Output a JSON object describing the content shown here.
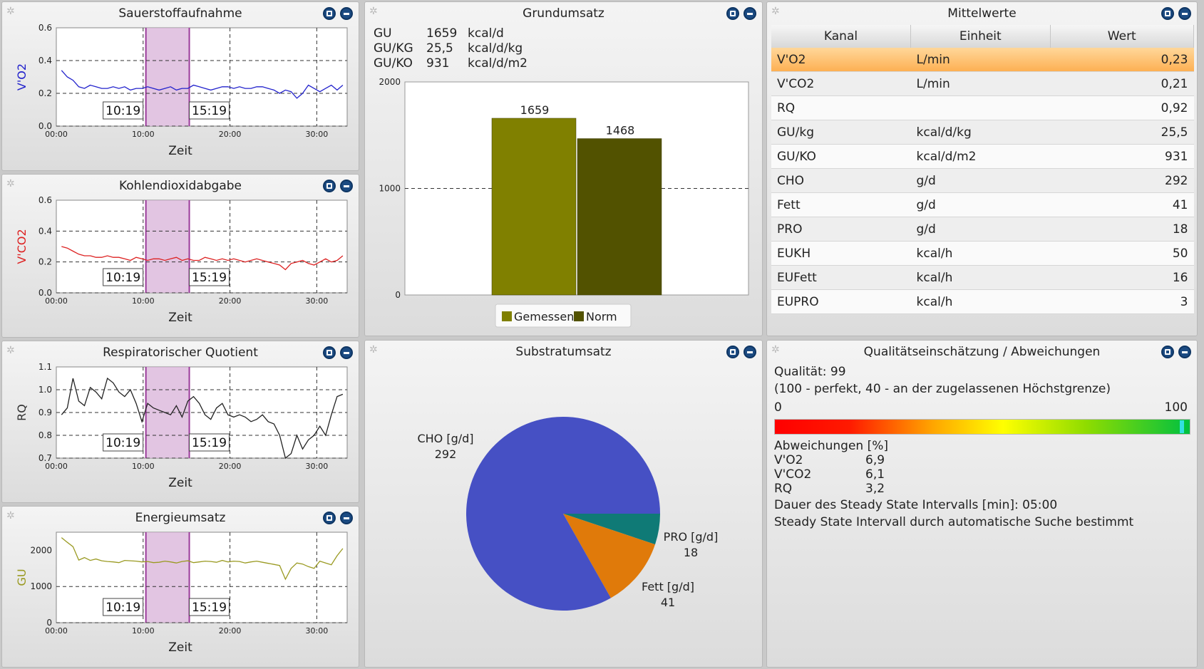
{
  "o2_panel": {
    "title": "Sauerstoffaufnahme",
    "chart_data": {
      "type": "line",
      "ylabel": "V'O2",
      "xlabel": "Zeit",
      "ylim": [
        0.0,
        0.6
      ],
      "yticks": [
        "0.6",
        "0.4",
        "0.2",
        "0.0"
      ],
      "xticks": [
        "00:00",
        "10:00",
        "20:00",
        "30:00"
      ],
      "interval_start": "10:19",
      "interval_end": "15:19",
      "color": "#2222cc",
      "series": [
        {
          "values": [
            0.34,
            0.3,
            0.28,
            0.24,
            0.23,
            0.25,
            0.24,
            0.23,
            0.23,
            0.24,
            0.23,
            0.24,
            0.22,
            0.23,
            0.23,
            0.24,
            0.23,
            0.22,
            0.23,
            0.24,
            0.22,
            0.23,
            0.23,
            0.25,
            0.24,
            0.23,
            0.22,
            0.23,
            0.24,
            0.24,
            0.23,
            0.24,
            0.23,
            0.23,
            0.24,
            0.24,
            0.23,
            0.22,
            0.2,
            0.22,
            0.21,
            0.17,
            0.2,
            0.25,
            0.23,
            0.21,
            0.23,
            0.25,
            0.22,
            0.25
          ]
        }
      ]
    }
  },
  "co2_panel": {
    "title": "Kohlendioxidabgabe",
    "chart_data": {
      "type": "line",
      "ylabel": "V'CO2",
      "xlabel": "Zeit",
      "ylim": [
        0.0,
        0.6
      ],
      "yticks": [
        "0.6",
        "0.4",
        "0.2",
        "0.0"
      ],
      "xticks": [
        "00:00",
        "10:00",
        "20:00",
        "30:00"
      ],
      "interval_start": "10:19",
      "interval_end": "15:19",
      "color": "#dd2222",
      "series": [
        {
          "values": [
            0.3,
            0.29,
            0.27,
            0.25,
            0.24,
            0.24,
            0.23,
            0.23,
            0.24,
            0.23,
            0.23,
            0.22,
            0.21,
            0.23,
            0.22,
            0.21,
            0.22,
            0.22,
            0.21,
            0.22,
            0.23,
            0.21,
            0.22,
            0.21,
            0.21,
            0.23,
            0.22,
            0.21,
            0.22,
            0.21,
            0.22,
            0.21,
            0.2,
            0.21,
            0.22,
            0.21,
            0.2,
            0.19,
            0.18,
            0.15,
            0.19,
            0.2,
            0.21,
            0.19,
            0.18,
            0.2,
            0.22,
            0.2,
            0.21,
            0.24
          ]
        }
      ]
    }
  },
  "rq_panel": {
    "title": "Respiratorischer Quotient",
    "chart_data": {
      "type": "line",
      "ylabel": "RQ",
      "xlabel": "Zeit",
      "ylim": [
        0.7,
        1.1
      ],
      "yticks": [
        "1.1",
        "1.0",
        "0.9",
        "0.8",
        "0.7"
      ],
      "xticks": [
        "00:00",
        "10:00",
        "20:00",
        "30:00"
      ],
      "interval_start": "10:19",
      "interval_end": "15:19",
      "color": "#222222",
      "series": [
        {
          "values": [
            0.89,
            0.92,
            1.05,
            0.95,
            0.93,
            1.01,
            0.99,
            0.96,
            1.05,
            1.03,
            0.99,
            0.97,
            1.0,
            0.94,
            0.86,
            0.94,
            0.92,
            0.91,
            0.9,
            0.89,
            0.93,
            0.88,
            0.95,
            0.97,
            0.94,
            0.89,
            0.87,
            0.92,
            0.94,
            0.89,
            0.88,
            0.89,
            0.88,
            0.86,
            0.87,
            0.89,
            0.86,
            0.85,
            0.8,
            0.7,
            0.72,
            0.8,
            0.74,
            0.78,
            0.8,
            0.84,
            0.8,
            0.89,
            0.97,
            0.98
          ]
        }
      ]
    }
  },
  "gu_panel": {
    "title": "Energieumsatz",
    "chart_data": {
      "type": "line",
      "ylabel": "GU",
      "xlabel": "Zeit",
      "ylim": [
        0,
        2500
      ],
      "yticks": [
        "2000",
        "1000",
        "0"
      ],
      "xticks": [
        "00:00",
        "10:00",
        "20:00",
        "30:00"
      ],
      "interval_start": "10:19",
      "interval_end": "15:19",
      "color": "#9a9a22",
      "series": [
        {
          "values": [
            2350,
            2220,
            2100,
            1730,
            1800,
            1720,
            1760,
            1710,
            1690,
            1680,
            1660,
            1720,
            1710,
            1700,
            1680,
            1690,
            1660,
            1670,
            1700,
            1680,
            1650,
            1690,
            1710,
            1660,
            1680,
            1700,
            1690,
            1670,
            1720,
            1680,
            1700,
            1690,
            1650,
            1680,
            1700,
            1670,
            1640,
            1610,
            1580,
            1200,
            1500,
            1650,
            1620,
            1550,
            1500,
            1700,
            1650,
            1600,
            1850,
            2050
          ]
        }
      ]
    }
  },
  "grundumsatz": {
    "title": "Grundumsatz",
    "rows": [
      {
        "label": "GU",
        "value": "1659",
        "unit": "kcal/d"
      },
      {
        "label": "GU/KG",
        "value": "25,5",
        "unit": "kcal/d/kg"
      },
      {
        "label": "GU/KO",
        "value": "931",
        "unit": "kcal/d/m2"
      }
    ],
    "chart_data": {
      "type": "bar",
      "categories": [
        "Gemessen",
        "Norm"
      ],
      "values": [
        1659,
        1468
      ],
      "labels": [
        "1659",
        "1468"
      ],
      "ylim": [
        0,
        2000
      ],
      "yticks": [
        "2000",
        "1000",
        "0"
      ],
      "colors": [
        "#808000",
        "#525200"
      ],
      "legend": [
        "Gemessen",
        "Norm"
      ]
    }
  },
  "mittelwerte": {
    "title": "Mittelwerte",
    "headers": [
      "Kanal",
      "Einheit",
      "Wert"
    ],
    "rows": [
      {
        "kanal": "V'O2",
        "einheit": "L/min",
        "wert": "0,23"
      },
      {
        "kanal": "V'CO2",
        "einheit": "L/min",
        "wert": "0,21"
      },
      {
        "kanal": "RQ",
        "einheit": "",
        "wert": "0,92"
      },
      {
        "kanal": "GU/kg",
        "einheit": "kcal/d/kg",
        "wert": "25,5"
      },
      {
        "kanal": "GU/KO",
        "einheit": "kcal/d/m2",
        "wert": "931"
      },
      {
        "kanal": "CHO",
        "einheit": "g/d",
        "wert": "292"
      },
      {
        "kanal": "Fett",
        "einheit": "g/d",
        "wert": "41"
      },
      {
        "kanal": "PRO",
        "einheit": "g/d",
        "wert": "18"
      },
      {
        "kanal": "EUKH",
        "einheit": "kcal/h",
        "wert": "50"
      },
      {
        "kanal": "EUFett",
        "einheit": "kcal/h",
        "wert": "16"
      },
      {
        "kanal": "EUPRO",
        "einheit": "kcal/h",
        "wert": "3"
      }
    ]
  },
  "substrat": {
    "title": "Substratumsatz",
    "chart_data": {
      "type": "pie",
      "slices": [
        {
          "name": "CHO [g/d]",
          "value": 292,
          "color": "#4650c4"
        },
        {
          "name": "PRO [g/d]",
          "value": 18,
          "color": "#0f7a76"
        },
        {
          "name": "Fett [g/d]",
          "value": 41,
          "color": "#e07a0a"
        }
      ]
    }
  },
  "qualitaet": {
    "title": "Qualitätseinschätzung / Abweichungen",
    "quality_line": "Qualität: 99",
    "quality_value": 99,
    "scale_note": "(100 - perfekt, 40 - an der zugelassenen Höchstgrenze)",
    "scale_min": "0",
    "scale_max": "100",
    "dev_title": "Abweichungen [%]",
    "deviations": [
      {
        "name": "V'O2",
        "value": "6,9"
      },
      {
        "name": "V'CO2",
        "value": "6,1"
      },
      {
        "name": "RQ",
        "value": "3,2"
      }
    ],
    "duration": "Dauer des Steady State Intervalls [min]: 05:00",
    "method": "Steady State Intervall durch automatische Suche bestimmt"
  }
}
